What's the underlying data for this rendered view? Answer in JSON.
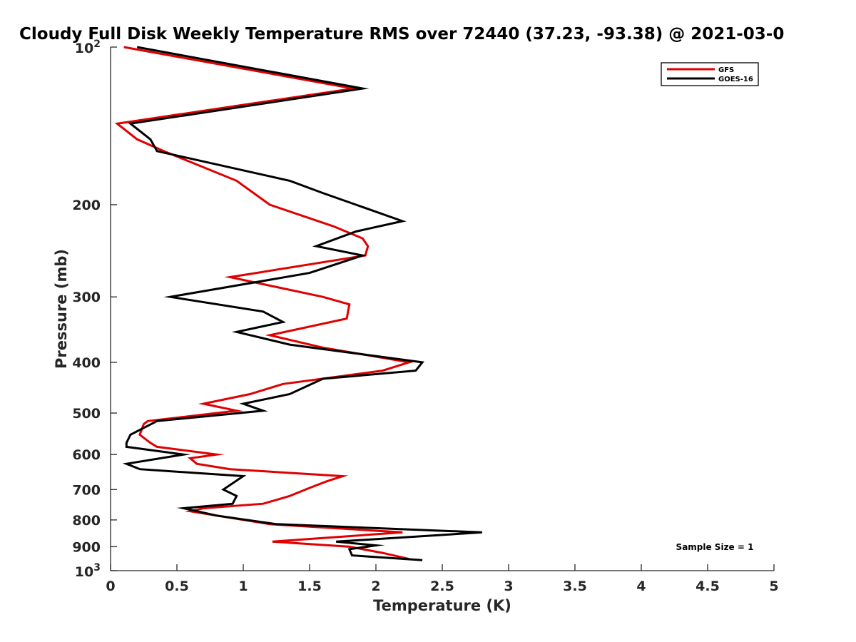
{
  "chart_data": {
    "type": "line",
    "title": "Cloudy Full Disk Weekly Temperature RMS over 72440 (37.23, -93.38) @ 2021-03-0",
    "xlabel": "Temperature (K)",
    "ylabel": "Pressure (mb)",
    "xlim": [
      0,
      5
    ],
    "ylim": [
      100,
      1000
    ],
    "y_scale": "log",
    "y_reversed": true,
    "grid": false,
    "legend_position": "top-right",
    "x_ticks": [
      0,
      0.5,
      1,
      1.5,
      2,
      2.5,
      3,
      3.5,
      4,
      4.5,
      5
    ],
    "x_tick_labels": [
      "0",
      "0.5",
      "1",
      "1.5",
      "2",
      "2.5",
      "3",
      "3.5",
      "4",
      "4.5",
      "5"
    ],
    "y_ticks": [
      200,
      300,
      400,
      500,
      600,
      700,
      800,
      900
    ],
    "y_tick_labels": [
      "200",
      "300",
      "400",
      "500",
      "600",
      "700",
      "800",
      "900"
    ],
    "y_end_labels": [
      {
        "value": 100,
        "base": "10",
        "exp": "2"
      },
      {
        "value": 1000,
        "base": "10",
        "exp": "3"
      }
    ],
    "annotation": "Sample Size = 1",
    "series": [
      {
        "name": "GFS",
        "color": "#e00000",
        "points": [
          {
            "x": 0.1,
            "y": 100
          },
          {
            "x": 1.83,
            "y": 120
          },
          {
            "x": 0.05,
            "y": 140
          },
          {
            "x": 0.2,
            "y": 150
          },
          {
            "x": 0.4,
            "y": 158
          },
          {
            "x": 0.95,
            "y": 180
          },
          {
            "x": 1.2,
            "y": 200
          },
          {
            "x": 1.68,
            "y": 220
          },
          {
            "x": 1.9,
            "y": 232
          },
          {
            "x": 1.94,
            "y": 240
          },
          {
            "x": 1.92,
            "y": 250
          },
          {
            "x": 1.1,
            "y": 270
          },
          {
            "x": 0.9,
            "y": 275
          },
          {
            "x": 1.6,
            "y": 300
          },
          {
            "x": 1.8,
            "y": 310
          },
          {
            "x": 1.78,
            "y": 330
          },
          {
            "x": 1.2,
            "y": 355
          },
          {
            "x": 1.6,
            "y": 375
          },
          {
            "x": 2.25,
            "y": 400
          },
          {
            "x": 2.05,
            "y": 415
          },
          {
            "x": 1.3,
            "y": 440
          },
          {
            "x": 1.05,
            "y": 460
          },
          {
            "x": 0.7,
            "y": 480
          },
          {
            "x": 0.95,
            "y": 495
          },
          {
            "x": 0.28,
            "y": 518
          },
          {
            "x": 0.25,
            "y": 525
          },
          {
            "x": 0.22,
            "y": 550
          },
          {
            "x": 0.3,
            "y": 570
          },
          {
            "x": 0.35,
            "y": 580
          },
          {
            "x": 0.8,
            "y": 600
          },
          {
            "x": 0.6,
            "y": 610
          },
          {
            "x": 0.65,
            "y": 625
          },
          {
            "x": 0.9,
            "y": 640
          },
          {
            "x": 1.75,
            "y": 660
          },
          {
            "x": 1.63,
            "y": 675
          },
          {
            "x": 1.5,
            "y": 695
          },
          {
            "x": 1.35,
            "y": 720
          },
          {
            "x": 1.15,
            "y": 745
          },
          {
            "x": 0.7,
            "y": 760
          },
          {
            "x": 0.6,
            "y": 770
          },
          {
            "x": 0.8,
            "y": 785
          },
          {
            "x": 1.2,
            "y": 815
          },
          {
            "x": 2.2,
            "y": 845
          },
          {
            "x": 1.22,
            "y": 880
          },
          {
            "x": 1.8,
            "y": 900
          },
          {
            "x": 2.05,
            "y": 925
          },
          {
            "x": 2.25,
            "y": 950
          }
        ]
      },
      {
        "name": "GOES-16",
        "color": "#000000",
        "points": [
          {
            "x": 0.2,
            "y": 100
          },
          {
            "x": 1.9,
            "y": 120
          },
          {
            "x": 0.15,
            "y": 140
          },
          {
            "x": 0.3,
            "y": 150
          },
          {
            "x": 0.35,
            "y": 158
          },
          {
            "x": 1.35,
            "y": 180
          },
          {
            "x": 1.6,
            "y": 190
          },
          {
            "x": 1.85,
            "y": 200
          },
          {
            "x": 2.2,
            "y": 215
          },
          {
            "x": 1.85,
            "y": 225
          },
          {
            "x": 1.55,
            "y": 240
          },
          {
            "x": 1.9,
            "y": 250
          },
          {
            "x": 1.5,
            "y": 270
          },
          {
            "x": 0.45,
            "y": 300
          },
          {
            "x": 1.15,
            "y": 320
          },
          {
            "x": 1.3,
            "y": 335
          },
          {
            "x": 0.95,
            "y": 350
          },
          {
            "x": 1.35,
            "y": 370
          },
          {
            "x": 2.35,
            "y": 400
          },
          {
            "x": 2.3,
            "y": 415
          },
          {
            "x": 1.6,
            "y": 430
          },
          {
            "x": 1.35,
            "y": 460
          },
          {
            "x": 1.0,
            "y": 480
          },
          {
            "x": 1.15,
            "y": 495
          },
          {
            "x": 0.35,
            "y": 518
          },
          {
            "x": 0.15,
            "y": 550
          },
          {
            "x": 0.12,
            "y": 570
          },
          {
            "x": 0.12,
            "y": 580
          },
          {
            "x": 0.55,
            "y": 600
          },
          {
            "x": 0.12,
            "y": 625
          },
          {
            "x": 0.22,
            "y": 640
          },
          {
            "x": 1.0,
            "y": 660
          },
          {
            "x": 0.85,
            "y": 700
          },
          {
            "x": 0.95,
            "y": 720
          },
          {
            "x": 0.92,
            "y": 745
          },
          {
            "x": 0.55,
            "y": 760
          },
          {
            "x": 0.8,
            "y": 785
          },
          {
            "x": 1.25,
            "y": 815
          },
          {
            "x": 2.8,
            "y": 845
          },
          {
            "x": 1.7,
            "y": 880
          },
          {
            "x": 2.0,
            "y": 895
          },
          {
            "x": 1.8,
            "y": 910
          },
          {
            "x": 1.82,
            "y": 935
          },
          {
            "x": 2.35,
            "y": 955
          }
        ]
      }
    ]
  }
}
